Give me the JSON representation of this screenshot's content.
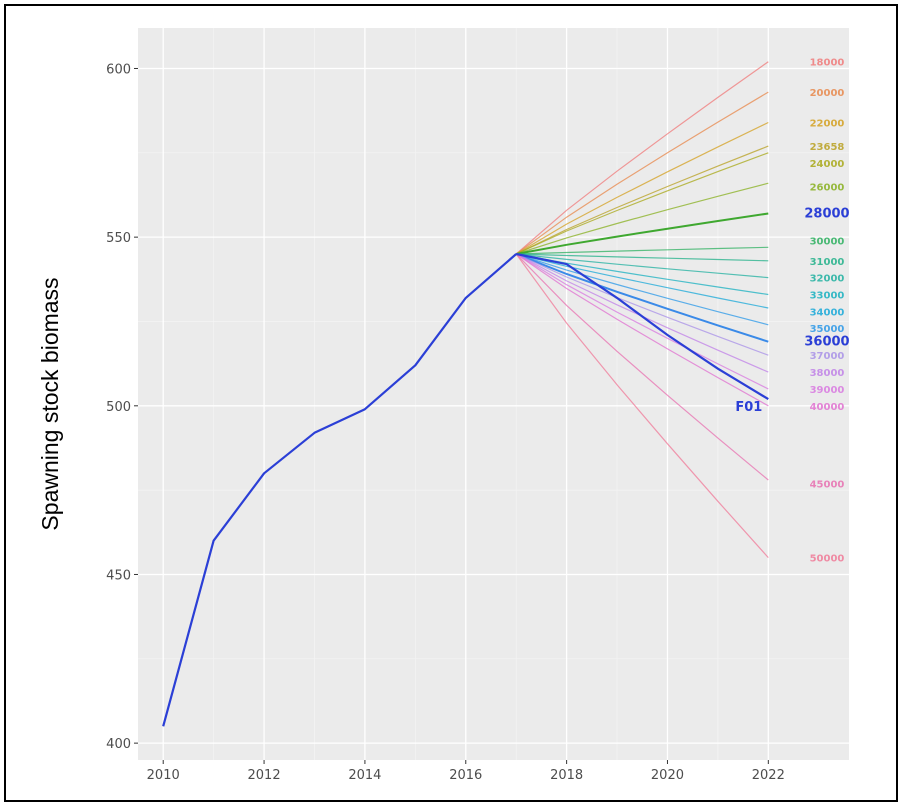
{
  "chart_data": {
    "type": "line",
    "title": "",
    "xlabel": "",
    "ylabel": "Spawning stock biomass",
    "xlim": [
      2009.5,
      2023.6
    ],
    "ylim": [
      395,
      612
    ],
    "x_ticks": [
      2010,
      2012,
      2014,
      2016,
      2018,
      2020,
      2022
    ],
    "y_ticks": [
      400,
      450,
      500,
      550,
      600
    ],
    "grid": true,
    "legend": "none (direct end labels)",
    "background": "#ebebeb",
    "history": {
      "name": "",
      "color": "#2b3fd6",
      "x": [
        2010,
        2011,
        2012,
        2013,
        2014,
        2015,
        2016,
        2017
      ],
      "y": [
        405,
        460,
        480,
        492,
        499,
        512,
        532,
        545
      ]
    },
    "projection_x": [
      2017,
      2018,
      2019,
      2020,
      2021,
      2022
    ],
    "series": [
      {
        "name": "18000",
        "color": "#f07a7a",
        "end": 602,
        "y_end": 602,
        "bold": false
      },
      {
        "name": "20000",
        "color": "#e8874a",
        "end": 593,
        "y_end": 593,
        "bold": false
      },
      {
        "name": "22000",
        "color": "#d4a020",
        "end": 584,
        "y_end": 584,
        "bold": false
      },
      {
        "name": "23658",
        "color": "#b8a020",
        "end": 577,
        "y_end": 577,
        "bold": false
      },
      {
        "name": "24000",
        "color": "#a8a818",
        "end": 575,
        "y_end": 572,
        "bold": false
      },
      {
        "name": "26000",
        "color": "#88b020",
        "end": 566,
        "y_end": 565,
        "bold": false
      },
      {
        "name": "28000",
        "color": "#2b3fd6",
        "end": 557,
        "y_end": 557,
        "bold": true,
        "line_color": "#3fa830"
      },
      {
        "name": "30000",
        "color": "#2eb060",
        "end": 547,
        "y_end": 549,
        "bold": false
      },
      {
        "name": "31000",
        "color": "#20b088",
        "end": 543,
        "y_end": 543,
        "bold": false
      },
      {
        "name": "32000",
        "color": "#20b0a0",
        "end": 538,
        "y_end": 538,
        "bold": false
      },
      {
        "name": "33000",
        "color": "#18b0c0",
        "end": 533,
        "y_end": 533,
        "bold": false
      },
      {
        "name": "34000",
        "color": "#18a8d8",
        "end": 529,
        "y_end": 528,
        "bold": false
      },
      {
        "name": "35000",
        "color": "#2a98e8",
        "end": 524,
        "y_end": 523,
        "bold": false
      },
      {
        "name": "36000",
        "color": "#2b3fd6",
        "end": 519,
        "y_end": 519,
        "bold": true,
        "line_color": "#3a8ae8"
      },
      {
        "name": "37000",
        "color": "#a890e8",
        "end": 515,
        "y_end": 515,
        "bold": false
      },
      {
        "name": "38000",
        "color": "#c080e8",
        "end": 510,
        "y_end": 510,
        "bold": false
      },
      {
        "name": "39000",
        "color": "#d878e0",
        "end": 505,
        "y_end": 505,
        "bold": false
      },
      {
        "name": "40000",
        "color": "#e070d0",
        "end": 500,
        "y_end": 500,
        "bold": false
      },
      {
        "name": "45000",
        "color": "#e870b0",
        "end": 478,
        "y_end": 477,
        "bold": false
      },
      {
        "name": "50000",
        "color": "#f07a98",
        "end": 455,
        "y_end": 455,
        "bold": false
      }
    ],
    "f01": {
      "name": "F01",
      "color": "#2b3fd6",
      "x": [
        2017,
        2018,
        2019,
        2020,
        2021,
        2022
      ],
      "y": [
        545,
        542,
        532,
        521,
        511,
        502
      ]
    }
  }
}
